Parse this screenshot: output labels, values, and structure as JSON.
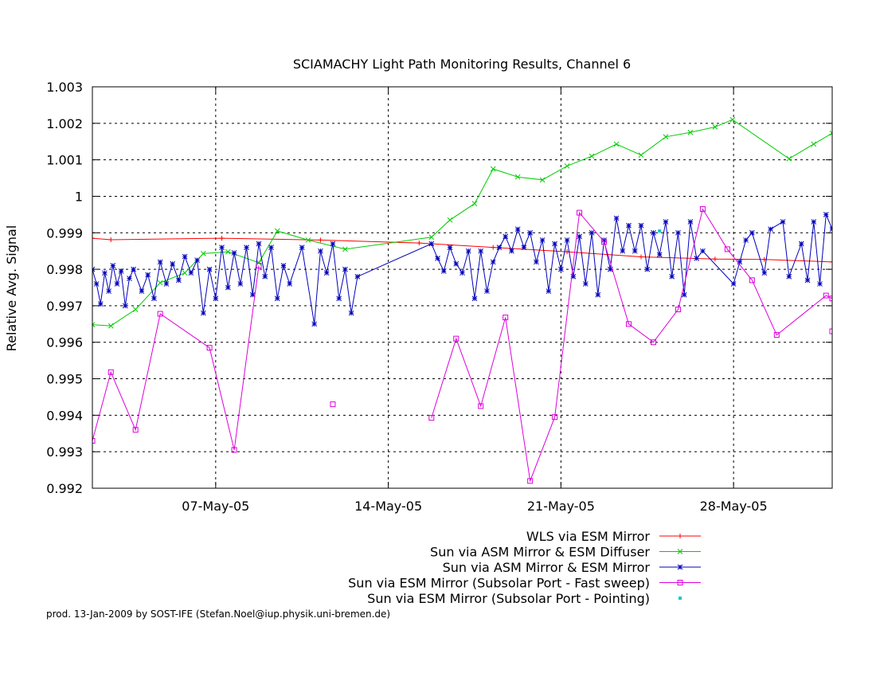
{
  "chart_data": {
    "type": "line",
    "title": "SCIAMACHY Light Path Monitoring Results, Channel 6",
    "xlabel": "",
    "ylabel": "Relative Avg. Signal",
    "xlim": [
      "2005-05-02 00:00",
      "2005-06-01 00:00"
    ],
    "ylim": [
      0.992,
      1.003
    ],
    "x_ticks": [
      {
        "value": "2005-05-07 00:00",
        "label": "07-May-05"
      },
      {
        "value": "2005-05-14 00:00",
        "label": "14-May-05"
      },
      {
        "value": "2005-05-21 00:00",
        "label": "21-May-05"
      },
      {
        "value": "2005-05-28 00:00",
        "label": "28-May-05"
      }
    ],
    "y_ticks": [
      {
        "value": 0.992,
        "label": "0.992"
      },
      {
        "value": 0.993,
        "label": "0.993"
      },
      {
        "value": 0.994,
        "label": "0.994"
      },
      {
        "value": 0.995,
        "label": "0.995"
      },
      {
        "value": 0.996,
        "label": "0.996"
      },
      {
        "value": 0.997,
        "label": "0.997"
      },
      {
        "value": 0.998,
        "label": "0.998"
      },
      {
        "value": 0.999,
        "label": "0.999"
      },
      {
        "value": 1.0,
        "label": "1"
      },
      {
        "value": 1.001,
        "label": "1.001"
      },
      {
        "value": 1.002,
        "label": "1.002"
      },
      {
        "value": 1.003,
        "label": "1.003"
      }
    ],
    "grid": true,
    "legend_position": "bottom-right",
    "series": [
      {
        "name": "WLS via ESM Mirror",
        "color": "#ff0000",
        "marker": "plus",
        "points": [
          [
            "2005-05-02 00:00",
            0.99885
          ],
          [
            "2005-05-02 18:00",
            0.99881
          ],
          [
            "2005-05-07 06:00",
            0.99885
          ],
          [
            "2005-05-11 06:00",
            0.9988
          ],
          [
            "2005-05-15 06:00",
            0.99872
          ],
          [
            "2005-05-18 06:00",
            0.9986
          ],
          [
            "2005-05-21 06:00",
            0.99848
          ],
          [
            "2005-05-24 06:00",
            0.99834
          ],
          [
            "2005-05-27 06:00",
            0.99828
          ],
          [
            "2005-05-29 06:00",
            0.99827
          ],
          [
            "2005-06-01 00:00",
            0.9982
          ]
        ]
      },
      {
        "name": "Sun via ASM Mirror & ESM Diffuser",
        "color": "#00cc00",
        "marker": "cross",
        "points": [
          [
            "2005-05-02 00:00",
            0.99648
          ],
          [
            "2005-05-02 18:00",
            0.99645
          ],
          [
            "2005-05-03 18:00",
            0.9969
          ],
          [
            "2005-05-04 18:00",
            0.99763
          ],
          [
            "2005-05-05 18:00",
            0.9979
          ],
          [
            "2005-05-06 12:00",
            0.99843
          ],
          [
            "2005-05-07 12:00",
            0.99848
          ],
          [
            "2005-05-08 18:00",
            0.99818
          ],
          [
            "2005-05-09 12:00",
            0.99905
          ],
          [
            "2005-05-10 18:00",
            0.9988
          ],
          [
            "2005-05-12 06:00",
            0.99855
          ],
          [
            "2005-05-15 18:00",
            0.99888
          ],
          [
            "2005-05-16 12:00",
            0.99935
          ],
          [
            "2005-05-17 12:00",
            0.9998
          ],
          [
            "2005-05-18 06:00",
            1.00075
          ],
          [
            "2005-05-19 06:00",
            1.00053
          ],
          [
            "2005-05-20 06:00",
            1.00045
          ],
          [
            "2005-05-21 06:00",
            1.00083
          ],
          [
            "2005-05-22 06:00",
            1.0011
          ],
          [
            "2005-05-23 06:00",
            1.00143
          ],
          [
            "2005-05-24 06:00",
            1.00113
          ],
          [
            "2005-05-25 06:00",
            1.00163
          ],
          [
            "2005-05-26 06:00",
            1.00175
          ],
          [
            "2005-05-27 06:00",
            1.0019
          ],
          [
            "2005-05-27 23:00",
            1.0021
          ],
          [
            "2005-05-30 06:00",
            1.00103
          ],
          [
            "2005-05-31 06:00",
            1.00143
          ],
          [
            "2005-06-01 00:00",
            1.00173
          ]
        ]
      },
      {
        "name": "Sun via ASM Mirror & ESM Mirror",
        "color": "#0000bb",
        "marker": "star",
        "points": [
          [
            "2005-05-02 00:00",
            0.998
          ],
          [
            "2005-05-02 04:00",
            0.9976
          ],
          [
            "2005-05-02 08:00",
            0.99705
          ],
          [
            "2005-05-02 12:00",
            0.9979
          ],
          [
            "2005-05-02 16:00",
            0.9974
          ],
          [
            "2005-05-02 20:00",
            0.9981
          ],
          [
            "2005-05-03 00:00",
            0.9976
          ],
          [
            "2005-05-03 04:00",
            0.99795
          ],
          [
            "2005-05-03 08:00",
            0.997
          ],
          [
            "2005-05-03 12:00",
            0.99775
          ],
          [
            "2005-05-03 16:00",
            0.998
          ],
          [
            "2005-05-04 00:00",
            0.9974
          ],
          [
            "2005-05-04 06:00",
            0.99785
          ],
          [
            "2005-05-04 12:00",
            0.9972
          ],
          [
            "2005-05-04 18:00",
            0.9982
          ],
          [
            "2005-05-05 00:00",
            0.9976
          ],
          [
            "2005-05-05 06:00",
            0.99815
          ],
          [
            "2005-05-05 12:00",
            0.9977
          ],
          [
            "2005-05-05 18:00",
            0.99835
          ],
          [
            "2005-05-06 00:00",
            0.9979
          ],
          [
            "2005-05-06 06:00",
            0.99825
          ],
          [
            "2005-05-06 12:00",
            0.9968
          ],
          [
            "2005-05-06 18:00",
            0.998
          ],
          [
            "2005-05-07 00:00",
            0.9972
          ],
          [
            "2005-05-07 06:00",
            0.9986
          ],
          [
            "2005-05-07 12:00",
            0.9975
          ],
          [
            "2005-05-07 18:00",
            0.99845
          ],
          [
            "2005-05-08 00:00",
            0.9976
          ],
          [
            "2005-05-08 06:00",
            0.9986
          ],
          [
            "2005-05-08 12:00",
            0.9973
          ],
          [
            "2005-05-08 18:00",
            0.9987
          ],
          [
            "2005-05-09 00:00",
            0.9978
          ],
          [
            "2005-05-09 06:00",
            0.9986
          ],
          [
            "2005-05-09 12:00",
            0.9972
          ],
          [
            "2005-05-09 18:00",
            0.9981
          ],
          [
            "2005-05-10 00:00",
            0.9976
          ],
          [
            "2005-05-10 12:00",
            0.9986
          ],
          [
            "2005-05-11 00:00",
            0.9965
          ],
          [
            "2005-05-11 06:00",
            0.9985
          ],
          [
            "2005-05-11 12:00",
            0.9979
          ],
          [
            "2005-05-11 18:00",
            0.9987
          ],
          [
            "2005-05-12 00:00",
            0.9972
          ],
          [
            "2005-05-12 06:00",
            0.998
          ],
          [
            "2005-05-12 12:00",
            0.9968
          ],
          [
            "2005-05-12 18:00",
            0.9978
          ],
          [
            "2005-05-15 18:00",
            0.9987
          ],
          [
            "2005-05-16 00:00",
            0.9983
          ],
          [
            "2005-05-16 06:00",
            0.99795
          ],
          [
            "2005-05-16 12:00",
            0.9986
          ],
          [
            "2005-05-16 18:00",
            0.99815
          ],
          [
            "2005-05-17 00:00",
            0.9979
          ],
          [
            "2005-05-17 06:00",
            0.9985
          ],
          [
            "2005-05-17 12:00",
            0.9972
          ],
          [
            "2005-05-17 18:00",
            0.9985
          ],
          [
            "2005-05-18 00:00",
            0.9974
          ],
          [
            "2005-05-18 06:00",
            0.9982
          ],
          [
            "2005-05-18 12:00",
            0.9986
          ],
          [
            "2005-05-18 18:00",
            0.9989
          ],
          [
            "2005-05-19 00:00",
            0.9985
          ],
          [
            "2005-05-19 06:00",
            0.9991
          ],
          [
            "2005-05-19 12:00",
            0.9986
          ],
          [
            "2005-05-19 18:00",
            0.999
          ],
          [
            "2005-05-20 00:00",
            0.9982
          ],
          [
            "2005-05-20 06:00",
            0.9988
          ],
          [
            "2005-05-20 12:00",
            0.9974
          ],
          [
            "2005-05-20 18:00",
            0.9987
          ],
          [
            "2005-05-21 00:00",
            0.998
          ],
          [
            "2005-05-21 06:00",
            0.9988
          ],
          [
            "2005-05-21 12:00",
            0.9978
          ],
          [
            "2005-05-21 18:00",
            0.9989
          ],
          [
            "2005-05-22 00:00",
            0.9976
          ],
          [
            "2005-05-22 06:00",
            0.999
          ],
          [
            "2005-05-22 12:00",
            0.9973
          ],
          [
            "2005-05-22 18:00",
            0.9988
          ],
          [
            "2005-05-23 00:00",
            0.998
          ],
          [
            "2005-05-23 06:00",
            0.9994
          ],
          [
            "2005-05-23 12:00",
            0.9985
          ],
          [
            "2005-05-23 18:00",
            0.9992
          ],
          [
            "2005-05-24 00:00",
            0.9985
          ],
          [
            "2005-05-24 06:00",
            0.9992
          ],
          [
            "2005-05-24 12:00",
            0.998
          ],
          [
            "2005-05-24 18:00",
            0.999
          ],
          [
            "2005-05-25 00:00",
            0.9984
          ],
          [
            "2005-05-25 06:00",
            0.9993
          ],
          [
            "2005-05-25 12:00",
            0.9978
          ],
          [
            "2005-05-25 18:00",
            0.999
          ],
          [
            "2005-05-26 00:00",
            0.9973
          ],
          [
            "2005-05-26 06:00",
            0.9993
          ],
          [
            "2005-05-26 12:00",
            0.9983
          ],
          [
            "2005-05-26 18:00",
            0.9985
          ],
          [
            "2005-05-28 00:00",
            0.9976
          ],
          [
            "2005-05-28 06:00",
            0.9982
          ],
          [
            "2005-05-28 12:00",
            0.9988
          ],
          [
            "2005-05-28 18:00",
            0.999
          ],
          [
            "2005-05-29 06:00",
            0.9979
          ],
          [
            "2005-05-29 12:00",
            0.9991
          ],
          [
            "2005-05-30 00:00",
            0.9993
          ],
          [
            "2005-05-30 06:00",
            0.9978
          ],
          [
            "2005-05-30 18:00",
            0.9987
          ],
          [
            "2005-05-31 00:00",
            0.9977
          ],
          [
            "2005-05-31 06:00",
            0.9993
          ],
          [
            "2005-05-31 12:00",
            0.9976
          ],
          [
            "2005-05-31 18:00",
            0.9995
          ],
          [
            "2005-06-01 00:00",
            0.9991
          ]
        ]
      },
      {
        "name": "Sun via ESM Mirror (Subsolar Port - Fast sweep)",
        "color": "#dd00dd",
        "marker": "square",
        "points": [
          [
            "2005-05-02 00:00",
            0.9933
          ],
          [
            "2005-05-02 18:00",
            0.99518
          ],
          [
            "2005-05-03 18:00",
            0.9936
          ],
          [
            "2005-05-04 18:00",
            0.99678
          ],
          [
            "2005-05-06 18:00",
            0.99585
          ],
          [
            "2005-05-07 18:00",
            0.99305
          ],
          [
            "2005-05-08 18:00",
            0.9981
          ],
          null,
          [
            "2005-05-11 18:00",
            0.9943
          ],
          null,
          [
            "2005-05-15 18:00",
            0.99393
          ],
          [
            "2005-05-16 18:00",
            0.9961
          ],
          [
            "2005-05-17 18:00",
            0.99425
          ],
          [
            "2005-05-18 18:00",
            0.99668
          ],
          [
            "2005-05-19 18:00",
            0.9922
          ],
          [
            "2005-05-20 18:00",
            0.99395
          ],
          [
            "2005-05-21 18:00",
            0.99955
          ],
          [
            "2005-05-22 18:00",
            0.99875
          ],
          [
            "2005-05-23 18:00",
            0.9965
          ],
          [
            "2005-05-24 18:00",
            0.996
          ],
          [
            "2005-05-25 18:00",
            0.9969
          ],
          [
            "2005-05-26 18:00",
            0.99965
          ],
          [
            "2005-05-27 18:00",
            0.99855
          ],
          [
            "2005-05-28 18:00",
            0.9977
          ],
          [
            "2005-05-29 18:00",
            0.9962
          ],
          [
            "2005-05-31 18:00",
            0.99728
          ],
          [
            "2005-06-01 00:00",
            0.9972
          ],
          [
            "2005-06-01 00:00",
            0.9963
          ]
        ]
      },
      {
        "name": "Sun via ESM Mirror (Subsolar Port - Pointing)",
        "color": "#00cccc",
        "marker": "dot",
        "points": [
          [
            "2005-05-25 00:00",
            0.99905
          ]
        ]
      }
    ],
    "credit": "prod. 13-Jan-2009 by SOST-IFE (Stefan.Noel@iup.physik.uni-bremen.de)"
  }
}
